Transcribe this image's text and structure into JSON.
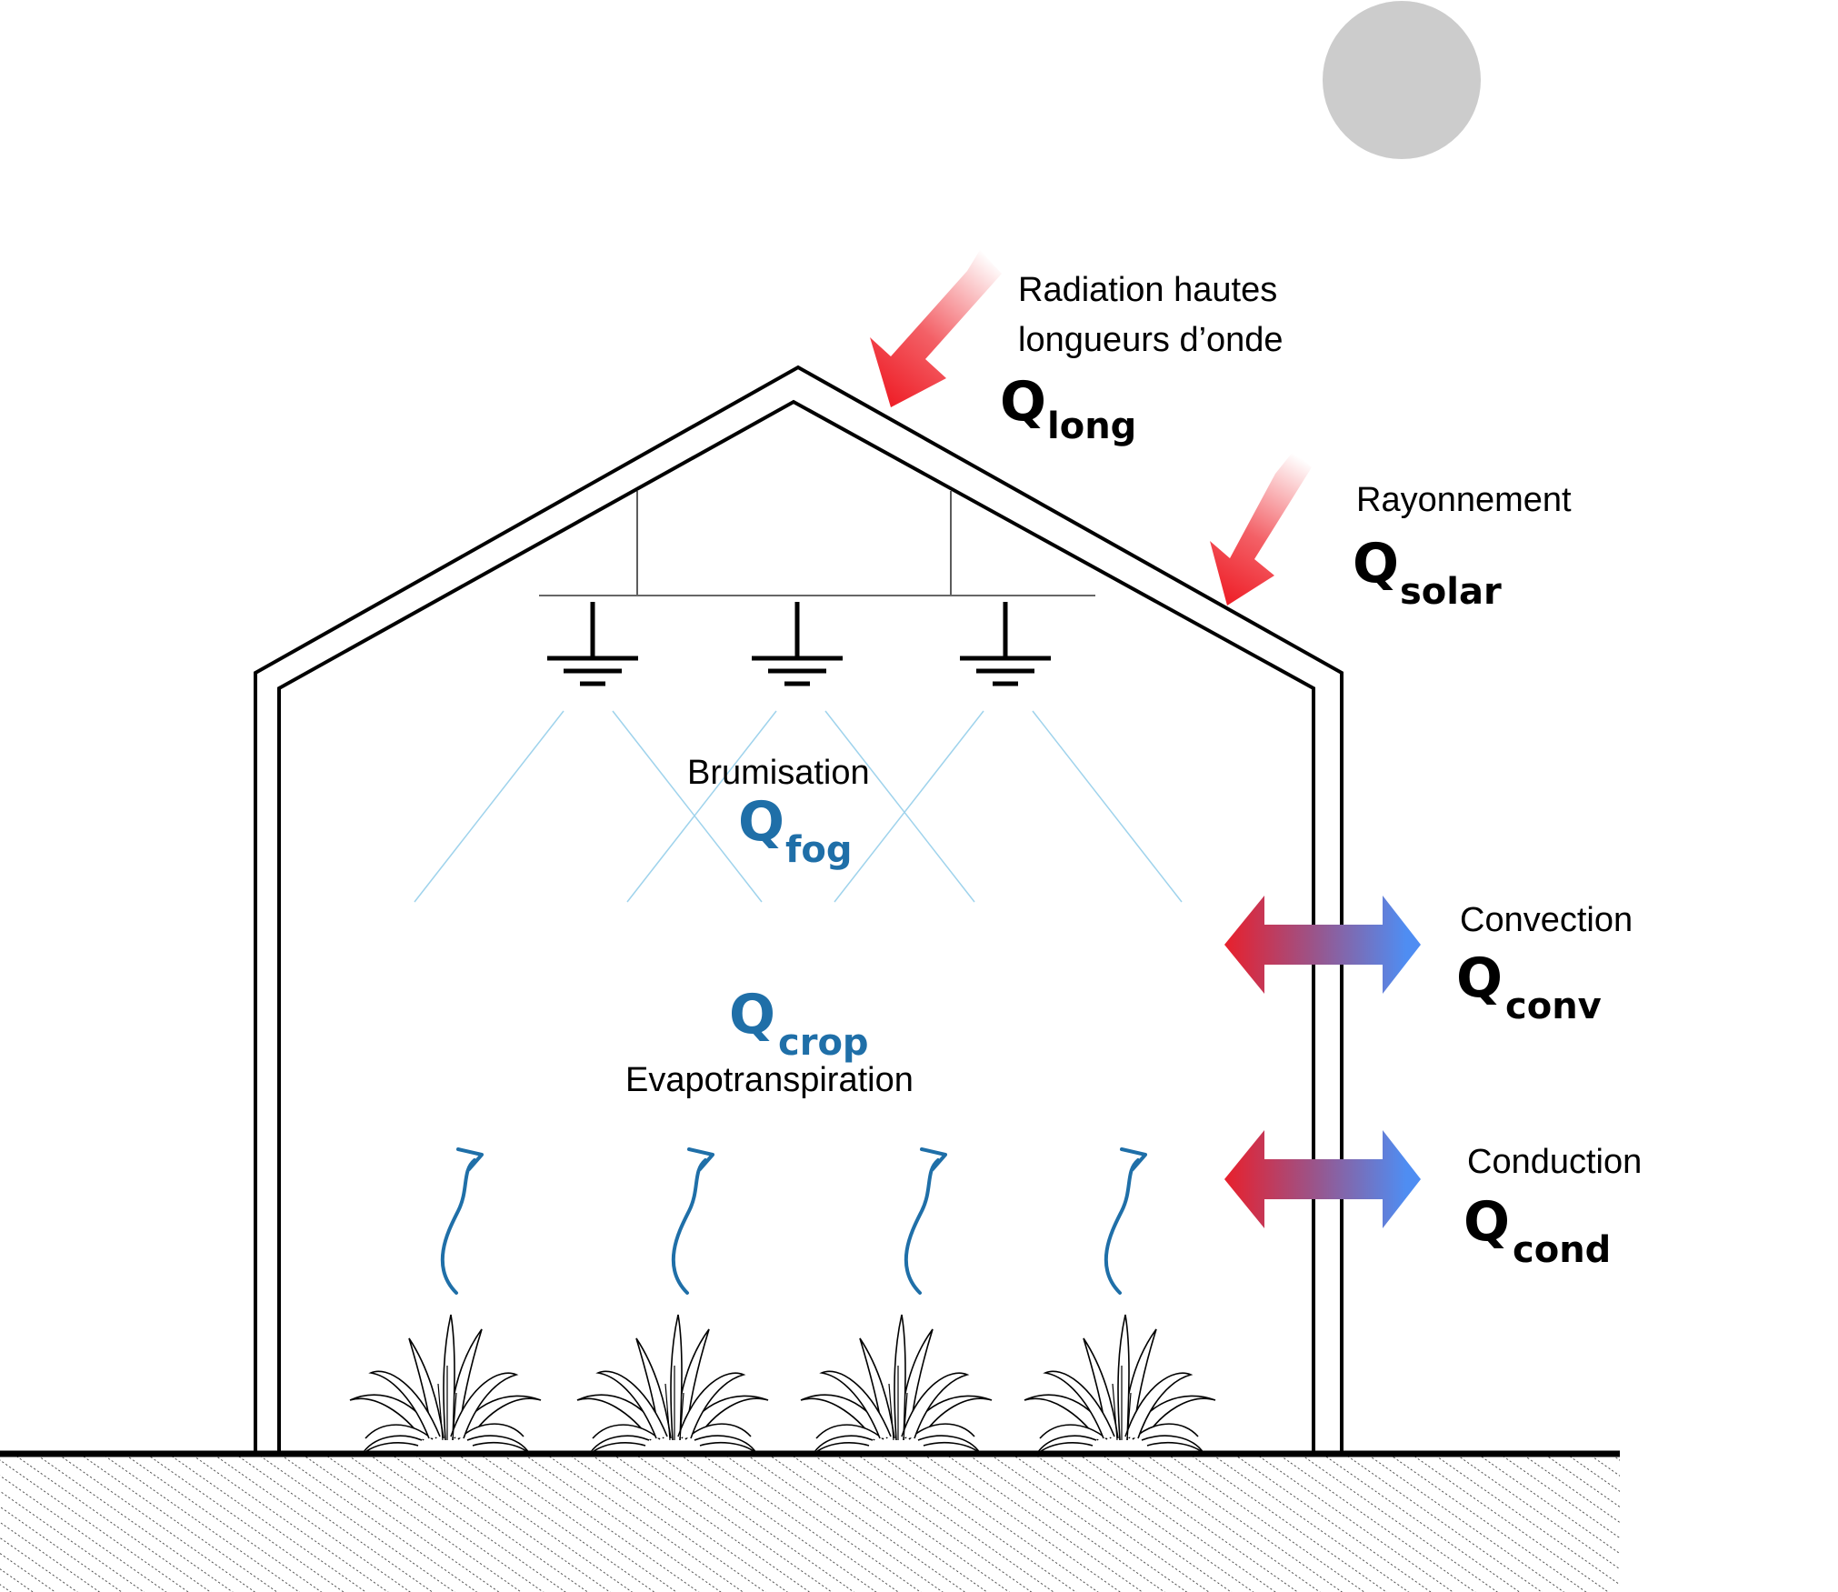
{
  "colors": {
    "outline": "#000000",
    "sun": "#cccccc",
    "hot": "#ee1c25",
    "cold": "#4f8df2",
    "water": "#1f6fa8",
    "fog_lines": "#9fd3ec"
  },
  "labels": {
    "long_radiation": {
      "line1": "Radiation hautes",
      "line2": "longueurs d’onde",
      "q": "Q",
      "sub": "long"
    },
    "solar": {
      "line1": "Rayonnement",
      "q": "Q",
      "sub": "solar"
    },
    "fog": {
      "line1": "Brumisation",
      "q": "Q",
      "sub": "fog"
    },
    "crop": {
      "q": "Q",
      "sub": "crop",
      "line1": "Evapotranspiration"
    },
    "convection": {
      "line1": "Convection",
      "q": "Q",
      "sub": "conv"
    },
    "conduction": {
      "line1": "Conduction",
      "q": "Q",
      "sub": "cond"
    }
  },
  "icons": {
    "sun": "sun-disc-icon",
    "nozzle": "fog-nozzle-icon",
    "plant": "plant-icon",
    "vapor": "vapor-arrow-icon"
  }
}
